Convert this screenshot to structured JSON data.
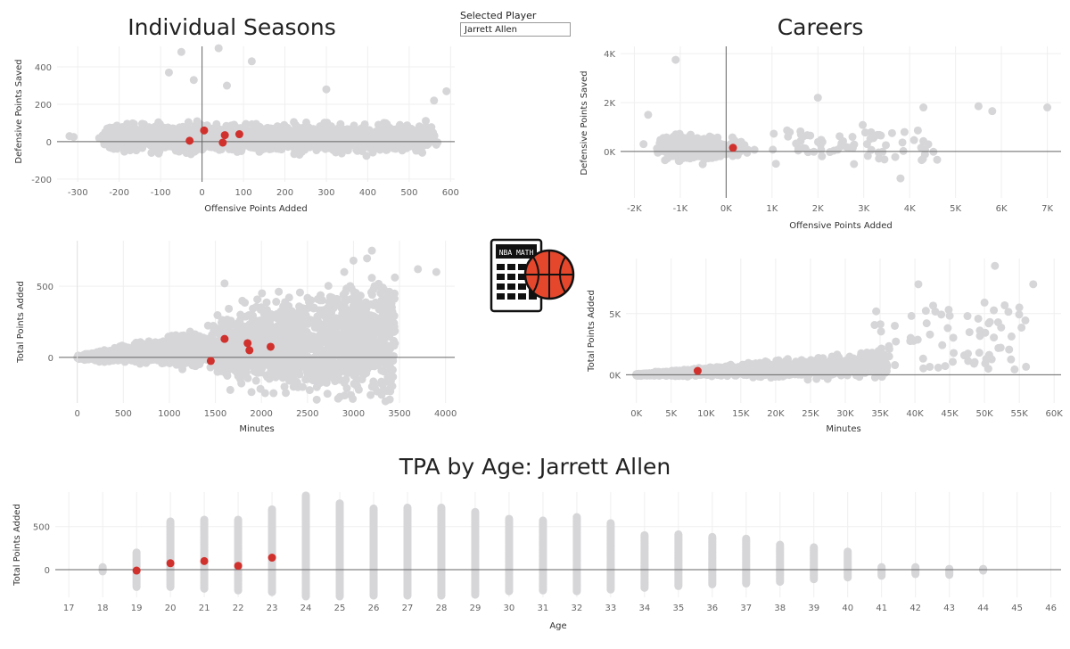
{
  "titles": {
    "seasons": "Individual Seasons",
    "careers": "Careers",
    "age": "TPA by Age: Jarrett Allen"
  },
  "selector": {
    "label": "Selected Player",
    "value": "Jarrett Allen"
  },
  "logo_text": "NBA MATH",
  "colors": {
    "background_points": "#d6d6d9",
    "highlight": "#d0312d",
    "zero_line": "#666666"
  },
  "chart_data": [
    {
      "id": "seasons_scatter",
      "type": "scatter",
      "xlabel": "Offensive Points Added",
      "ylabel": "Defensive Points Saved",
      "xlim": [
        -350,
        610
      ],
      "ylim": [
        -215,
        510
      ],
      "xticks": [
        -300,
        -200,
        -100,
        0,
        100,
        200,
        300,
        400,
        500,
        600
      ],
      "yticks": [
        -200,
        0,
        200,
        400
      ],
      "yticklabels": [
        "-200",
        "0",
        "200",
        "400"
      ],
      "grid": true,
      "highlight_points": [
        [
          -30,
          5
        ],
        [
          5,
          60
        ],
        [
          50,
          -5
        ],
        [
          55,
          35
        ],
        [
          90,
          40
        ]
      ]
    },
    {
      "id": "careers_scatter",
      "type": "scatter",
      "xlabel": "Offensive Points Added",
      "ylabel": "Defensive Points Saved",
      "xlim": [
        -2300,
        7300
      ],
      "ylim": [
        -1900,
        4300
      ],
      "xticks": [
        -2000,
        -1000,
        0,
        1000,
        2000,
        3000,
        4000,
        5000,
        6000,
        7000
      ],
      "xticklabels": [
        "-2K",
        "-1K",
        "0K",
        "1K",
        "2K",
        "3K",
        "4K",
        "5K",
        "6K",
        "7K"
      ],
      "yticks": [
        0,
        2000,
        4000
      ],
      "yticklabels": [
        "0K",
        "2K",
        "4K"
      ],
      "grid": true,
      "highlight_points": [
        [
          150,
          150
        ]
      ]
    },
    {
      "id": "seasons_minutes",
      "type": "scatter",
      "xlabel": "Minutes",
      "ylabel": "Total Points Added",
      "xlim": [
        -200,
        4100
      ],
      "ylim": [
        -320,
        820
      ],
      "xticks": [
        0,
        500,
        1000,
        1500,
        2000,
        2500,
        3000,
        3500,
        4000
      ],
      "yticks": [
        0,
        500
      ],
      "yticklabels": [
        "0",
        "500"
      ],
      "grid": true,
      "highlight_points": [
        [
          1450,
          -25
        ],
        [
          1600,
          130
        ],
        [
          1850,
          100
        ],
        [
          1870,
          50
        ],
        [
          2100,
          75
        ]
      ]
    },
    {
      "id": "careers_minutes",
      "type": "scatter",
      "xlabel": "Minutes",
      "ylabel": "Total Points Added",
      "xlim": [
        -1500,
        61000
      ],
      "ylim": [
        -2300,
        9500
      ],
      "xticks": [
        0,
        5000,
        10000,
        15000,
        20000,
        25000,
        30000,
        35000,
        40000,
        45000,
        50000,
        55000,
        60000
      ],
      "xticklabels": [
        "0K",
        "5K",
        "10K",
        "15K",
        "20K",
        "25K",
        "30K",
        "35K",
        "40K",
        "45K",
        "50K",
        "55K",
        "60K"
      ],
      "yticks": [
        0,
        5000
      ],
      "yticklabels": [
        "0K",
        "5K"
      ],
      "grid": true,
      "highlight_points": [
        [
          8800,
          320
        ]
      ]
    },
    {
      "id": "tpa_by_age",
      "type": "scatter",
      "xlabel": "Age",
      "ylabel": "Total Points Added",
      "xlim": [
        16.6,
        46.3
      ],
      "ylim": [
        -320,
        900
      ],
      "xticks": [
        17,
        18,
        19,
        20,
        21,
        22,
        23,
        24,
        25,
        26,
        27,
        28,
        29,
        30,
        31,
        32,
        33,
        34,
        35,
        36,
        37,
        38,
        39,
        40,
        41,
        42,
        43,
        44,
        45,
        46
      ],
      "yticks": [
        0,
        500
      ],
      "yticklabels": [
        "0",
        "500"
      ],
      "grid": true,
      "age_ranges": [
        [
          18,
          -20,
          30
        ],
        [
          19,
          -200,
          200
        ],
        [
          20,
          -200,
          560
        ],
        [
          21,
          -220,
          580
        ],
        [
          22,
          -240,
          580
        ],
        [
          23,
          -260,
          700
        ],
        [
          24,
          -310,
          860
        ],
        [
          25,
          -310,
          770
        ],
        [
          26,
          -300,
          710
        ],
        [
          27,
          -300,
          720
        ],
        [
          28,
          -300,
          720
        ],
        [
          29,
          -290,
          670
        ],
        [
          30,
          -250,
          590
        ],
        [
          31,
          -240,
          570
        ],
        [
          32,
          -250,
          610
        ],
        [
          33,
          -230,
          540
        ],
        [
          34,
          -210,
          400
        ],
        [
          35,
          -190,
          410
        ],
        [
          36,
          -170,
          380
        ],
        [
          37,
          -160,
          360
        ],
        [
          38,
          -140,
          290
        ],
        [
          39,
          -110,
          260
        ],
        [
          40,
          -90,
          210
        ],
        [
          41,
          -70,
          30
        ],
        [
          42,
          -50,
          30
        ],
        [
          43,
          -60,
          10
        ],
        [
          44,
          -10,
          10
        ]
      ],
      "highlight_points": [
        [
          19,
          -10
        ],
        [
          20,
          75
        ],
        [
          21,
          100
        ],
        [
          22,
          45
        ],
        [
          23,
          140
        ]
      ]
    }
  ]
}
